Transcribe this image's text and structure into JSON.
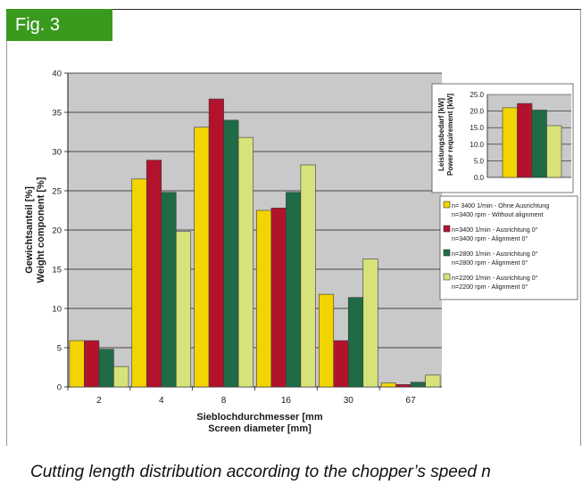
{
  "figure": {
    "tag": "Fig. 3",
    "caption": "Cutting length distribution according to the chopper’s speed n"
  },
  "colors": {
    "plot_bg": "#c9c9c9",
    "series": [
      "#f2d400",
      "#b3122d",
      "#1e6b46",
      "#d8e27a"
    ]
  },
  "chart_data": [
    {
      "type": "bar",
      "categories": [
        "2",
        "4",
        "8",
        "16",
        "30",
        "67"
      ],
      "ylim": [
        0,
        40
      ],
      "yticks": [
        "0",
        "5",
        "10",
        "15",
        "20",
        "25",
        "30",
        "35",
        "40"
      ],
      "ylabel": [
        "Gewichtsanteil [%]",
        "Weight component [%]"
      ],
      "xlabel": [
        "Sieblochdurchmesser [mm",
        "Screen diameter [mm]"
      ],
      "grid": true,
      "series": [
        {
          "name": [
            "n= 3400 1/min - Ohne Ausrichtung",
            "n=3400 rpm - Without alignment"
          ],
          "values": [
            5.9,
            26.5,
            33.1,
            22.5,
            11.8,
            0.5
          ]
        },
        {
          "name": [
            "n=3400 1/min - Ausrichtung 0°",
            "n=3400 rpm - Alignment 0°"
          ],
          "values": [
            5.9,
            28.9,
            36.7,
            22.8,
            5.9,
            0.3
          ]
        },
        {
          "name": [
            "n=2800 1/min - Ausrichtung 0°",
            "n=2800 rpm - Alignment 0°"
          ],
          "values": [
            4.8,
            24.8,
            34.0,
            24.8,
            11.4,
            0.6
          ]
        },
        {
          "name": [
            "n=2200 1/min - Ausrichtung 0°",
            "n=2200 rpm - Alignment 0°"
          ],
          "values": [
            2.6,
            19.8,
            31.8,
            28.3,
            16.3,
            1.5
          ]
        }
      ],
      "legend": "right"
    },
    {
      "type": "bar",
      "categories": [
        ""
      ],
      "ylim": [
        0,
        25
      ],
      "yticks": [
        "0.0",
        "5.0",
        "10.0",
        "15.0",
        "20.0",
        "25.0"
      ],
      "ylabel": [
        "Leistungsbedarf [kW]",
        "Power requirement [kW]"
      ],
      "grid": true,
      "series": [
        {
          "values": [
            21.0
          ]
        },
        {
          "values": [
            22.3
          ]
        },
        {
          "values": [
            20.3
          ]
        },
        {
          "values": [
            15.6
          ]
        }
      ],
      "legend": "inset top-right"
    }
  ]
}
